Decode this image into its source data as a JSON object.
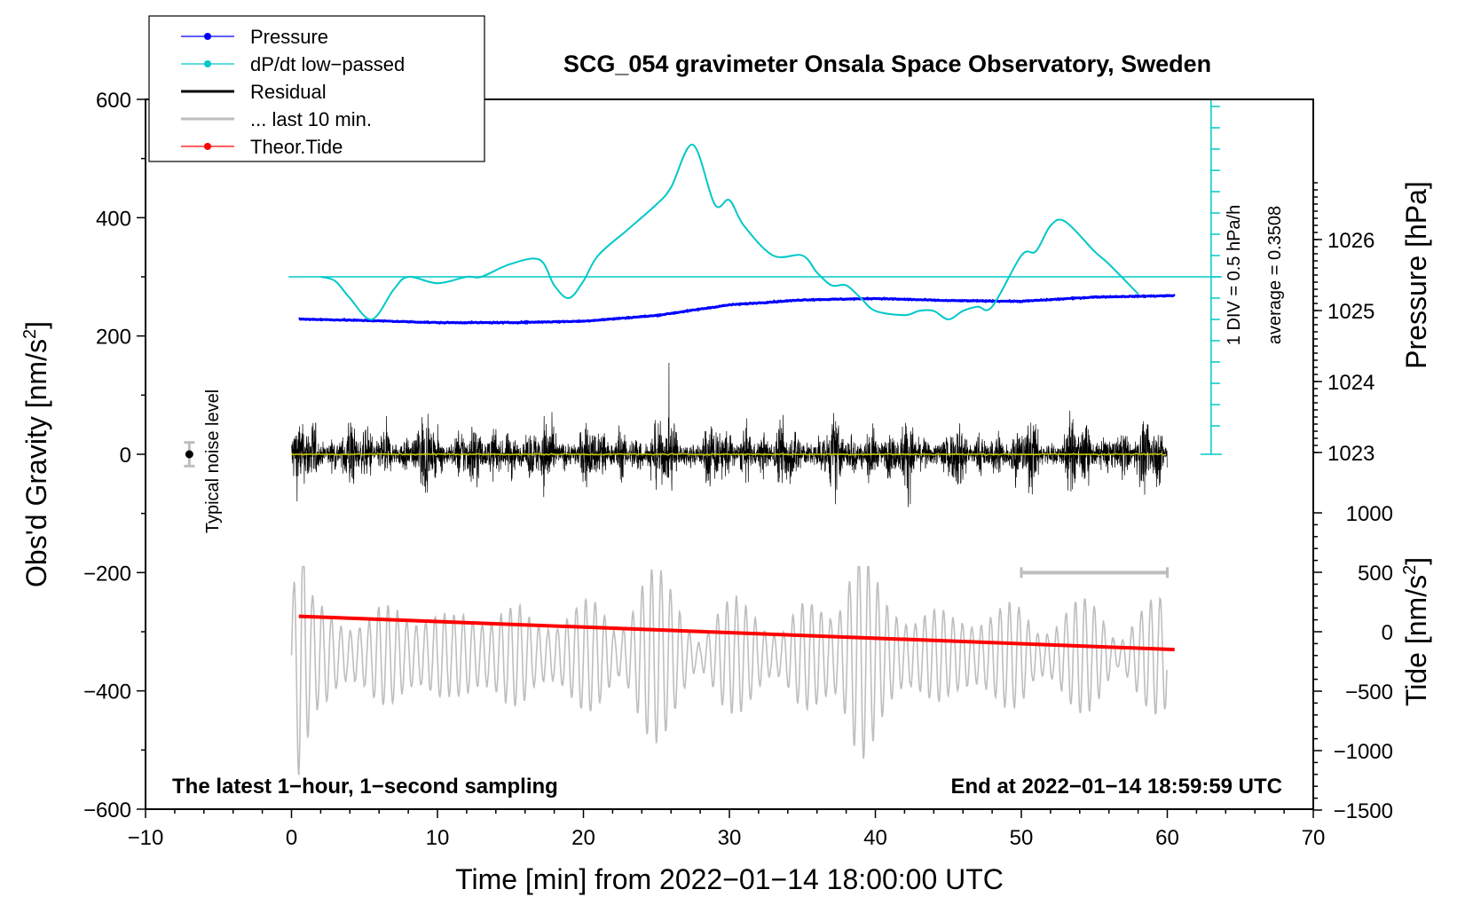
{
  "chart_data": {
    "type": "line",
    "title": "SCG_054 gravimeter Onsala Space Observatory, Sweden",
    "xlabel": "Time [min] from 2022−01−14 18:00:00 UTC",
    "ylabel_left": "Obs'd Gravity [nm/s",
    "ylabel_left_sup": "2",
    "ylabel_left_close": "]",
    "ylabel_right_pressure": "Pressure [hPa]",
    "ylabel_right_tide": "Tide [nm/s",
    "ylabel_right_tide_sup": "2",
    "ylabel_right_tide_close": "]",
    "xlim": [
      -10,
      70
    ],
    "ylim_left": [
      -600,
      600
    ],
    "xticks": [
      "−10",
      "0",
      "10",
      "20",
      "30",
      "40",
      "50",
      "60",
      "70"
    ],
    "yticks_left": [
      "600",
      "400",
      "200",
      "0",
      "−200",
      "−400",
      "−600"
    ],
    "yticks_pressure": [
      "1026",
      "1025",
      "1024",
      "1023"
    ],
    "yticks_tide": [
      "1000",
      "500",
      "0",
      "−500",
      "−1000",
      "−1500"
    ],
    "legend": [
      {
        "label": "Pressure",
        "color": "#0000ff",
        "marker": true
      },
      {
        "label": "dP/dt low−passed",
        "color": "#00c8c8",
        "marker": true
      },
      {
        "label": "Residual",
        "color": "#000000",
        "marker": false
      },
      {
        "label": "... last 10 min.",
        "color": "#bebebe",
        "marker": false
      },
      {
        "label": "Theor.Tide",
        "color": "#ff0000",
        "marker": true
      }
    ],
    "annotations": {
      "bottom_left": "The latest 1−hour, 1−second sampling",
      "bottom_right": "End at 2022−01−14 18:59:59 UTC",
      "noise": "Typical noise level",
      "dpdt_scale": "1 DIV = 0.5 hPa/h",
      "dpdt_average": "average = 0.3508"
    },
    "series": [
      {
        "name": "Pressure",
        "units": "hPa",
        "color": "#0000ff",
        "x": [
          0.5,
          5,
          10,
          15,
          20,
          25,
          30,
          35,
          40,
          45,
          50,
          55,
          60.5
        ],
        "values": [
          1024.88,
          1024.86,
          1024.83,
          1024.83,
          1024.85,
          1024.93,
          1025.08,
          1025.15,
          1025.17,
          1025.14,
          1025.13,
          1025.19,
          1025.21
        ]
      },
      {
        "name": "dP/dt low-passed",
        "units": "hPa/h (1 DIV = 0.5 hPa/h, baseline = average)",
        "color": "#00c8c8",
        "x": [
          2,
          3,
          4,
          5.5,
          7,
          8,
          10,
          12,
          13,
          15,
          17,
          18,
          19,
          20,
          21,
          23,
          25,
          26,
          27.5,
          29,
          30,
          31,
          33,
          35,
          36,
          37,
          38,
          39,
          40,
          42,
          43,
          44,
          45,
          46,
          47,
          48,
          50,
          51,
          52,
          53,
          55,
          56,
          58
        ],
        "values": [
          0,
          -0.1,
          -0.5,
          -1.0,
          -0.3,
          0,
          -0.15,
          0,
          0,
          0.3,
          0.4,
          -0.2,
          -0.5,
          -0.1,
          0.5,
          1.1,
          1.7,
          2.1,
          3.1,
          1.7,
          1.8,
          1.2,
          0.5,
          0.5,
          0.1,
          -0.2,
          -0.2,
          -0.5,
          -0.8,
          -0.9,
          -0.8,
          -0.8,
          -1.0,
          -0.8,
          -0.7,
          -0.7,
          0.5,
          0.6,
          1.2,
          1.3,
          0.6,
          0.3,
          -0.4
        ]
      },
      {
        "name": "Residual",
        "units": "nm/s^2",
        "color": "#000000",
        "x_range": [
          0,
          60
        ],
        "amplitude_range": [
          -215,
          210
        ]
      },
      {
        "name": "Residual smoothed",
        "units": "nm/s^2",
        "color": "#c8c800",
        "x_range": [
          0,
          60
        ],
        "values_approx": 0
      },
      {
        "name": "... last 10 min.",
        "units": "nm/s^2 (plotted offset at -300)",
        "color": "#bebebe",
        "x_range": [
          0,
          60
        ],
        "amplitude_range": [
          -560,
          -190
        ]
      },
      {
        "name": "Theor.Tide",
        "units": "nm/s^2",
        "color": "#ff0000",
        "x": [
          0.5,
          60.5
        ],
        "values": [
          130,
          -150
        ]
      }
    ],
    "noise_level": {
      "x": -7,
      "y": 0,
      "error": 20
    },
    "last_10_min_bar": {
      "x": [
        50,
        60
      ],
      "y": -200
    }
  }
}
